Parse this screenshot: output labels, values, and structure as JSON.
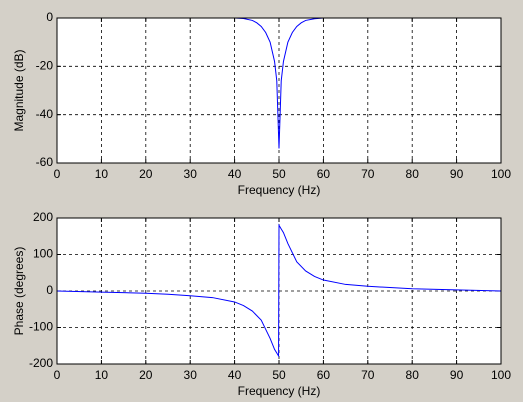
{
  "chart_data": [
    {
      "type": "line",
      "xlabel": "Frequency (Hz)",
      "ylabel": "Magnitude (dB)",
      "x": [
        0,
        10,
        20,
        30,
        40,
        42,
        44,
        45,
        46,
        47,
        48,
        49,
        49.5,
        50,
        50.5,
        51,
        52,
        53,
        54,
        55,
        56,
        58,
        60,
        70,
        80,
        90,
        100
      ],
      "values": [
        0,
        0,
        0,
        0,
        0,
        -0.2,
        -1,
        -2,
        -3.5,
        -6,
        -10,
        -18,
        -26,
        -54,
        -26,
        -18,
        -10,
        -6,
        -3.5,
        -2,
        -1,
        -0.3,
        0,
        0,
        0,
        0,
        0
      ],
      "color": "#0000ff",
      "xlim": [
        0,
        100
      ],
      "ylim": [
        -60,
        0
      ],
      "xticks": [
        0,
        10,
        20,
        30,
        40,
        50,
        60,
        70,
        80,
        90,
        100
      ],
      "yticks": [
        -60,
        -40,
        -20,
        0
      ],
      "grid": true
    },
    {
      "type": "line",
      "xlabel": "Frequency (Hz)",
      "ylabel": "Phase (degrees)",
      "x": [
        0,
        10,
        20,
        25,
        30,
        35,
        40,
        42,
        44,
        46,
        47,
        48,
        49,
        49.5,
        49.9,
        50,
        50.1,
        50.5,
        51,
        52,
        53,
        54,
        56,
        58,
        60,
        65,
        70,
        80,
        90,
        100
      ],
      "values": [
        0,
        -3,
        -6,
        -9,
        -13,
        -18,
        -30,
        -40,
        -55,
        -80,
        -105,
        -130,
        -160,
        -170,
        -178,
        180,
        178,
        170,
        160,
        130,
        105,
        80,
        55,
        40,
        30,
        18,
        13,
        6,
        3,
        0
      ],
      "color": "#0000ff",
      "xlim": [
        0,
        100
      ],
      "ylim": [
        -200,
        200
      ],
      "xticks": [
        0,
        10,
        20,
        30,
        40,
        50,
        60,
        70,
        80,
        90,
        100
      ],
      "yticks": [
        -200,
        -100,
        0,
        100,
        200
      ],
      "grid": true
    }
  ]
}
